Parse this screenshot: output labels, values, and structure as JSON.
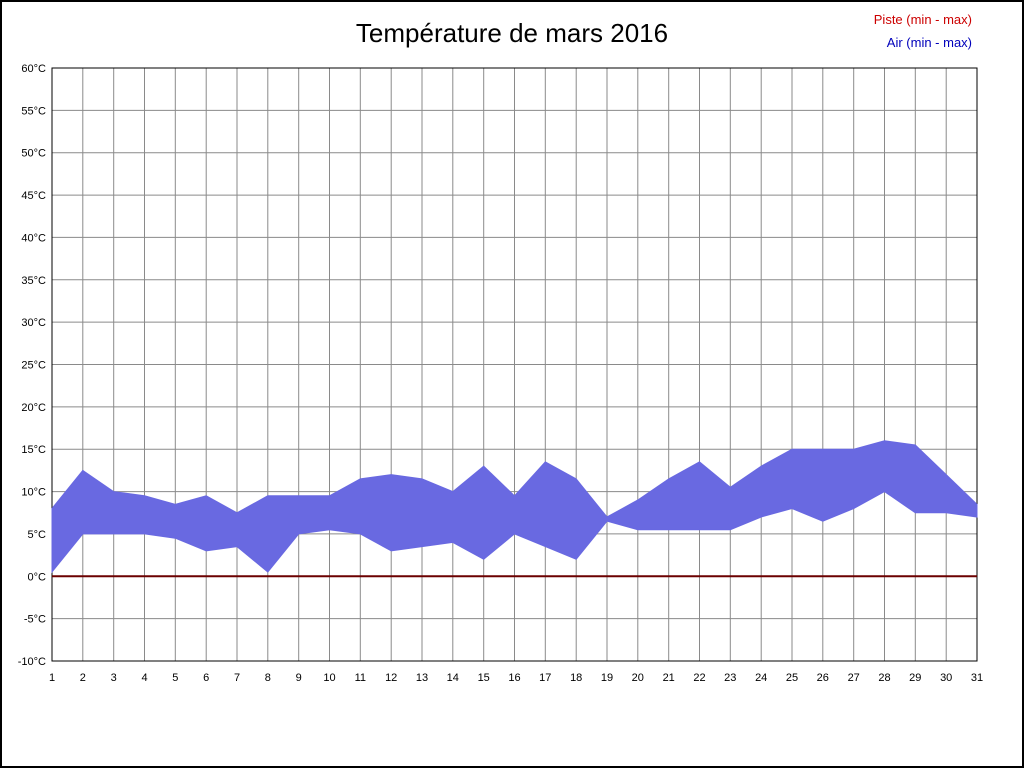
{
  "chart_data": {
    "type": "area",
    "title": "Température de mars 2016",
    "xlabel": "",
    "ylabel": "",
    "grid": true,
    "legend_position": "top-right",
    "background_color": "#ffffff",
    "grid_color": "#8a8a8a",
    "border_color": "#000000",
    "x": [
      1,
      2,
      3,
      4,
      5,
      6,
      7,
      8,
      9,
      10,
      11,
      12,
      13,
      14,
      15,
      16,
      17,
      18,
      19,
      20,
      21,
      22,
      23,
      24,
      25,
      26,
      27,
      28,
      29,
      30,
      31
    ],
    "x_tick_labels": [
      "1",
      "2",
      "3",
      "4",
      "5",
      "6",
      "7",
      "8",
      "9",
      "10",
      "11",
      "12",
      "13",
      "14",
      "15",
      "16",
      "17",
      "18",
      "19",
      "20",
      "21",
      "22",
      "23",
      "24",
      "25",
      "26",
      "27",
      "28",
      "29",
      "30",
      "31"
    ],
    "ylim": [
      -10,
      60
    ],
    "y_ticks": [
      60,
      55,
      50,
      45,
      40,
      35,
      30,
      25,
      20,
      15,
      10,
      5,
      0,
      -5,
      -10
    ],
    "y_tick_labels": [
      "60°C",
      "55°C",
      "50°C",
      "45°C",
      "40°C",
      "35°C",
      "30°C",
      "25°C",
      "20°C",
      "15°C",
      "10°C",
      "5°C",
      "0°C",
      "-5°C",
      "-10°C"
    ],
    "series": [
      {
        "name": "Piste (min - max)",
        "type": "line",
        "color": "#6b0000",
        "legend_color": "#cc0000",
        "values": [
          0,
          0,
          0,
          0,
          0,
          0,
          0,
          0,
          0,
          0,
          0,
          0,
          0,
          0,
          0,
          0,
          0,
          0,
          0,
          0,
          0,
          0,
          0,
          0,
          0,
          0,
          0,
          0,
          0,
          0,
          0
        ]
      },
      {
        "name": "Air (min - max)",
        "type": "band",
        "color": "#6969e1",
        "legend_color": "#0000bb",
        "min": [
          0.5,
          5,
          5,
          5,
          4.5,
          3,
          3.5,
          0.5,
          5,
          5.5,
          5,
          3,
          3.5,
          4,
          2,
          5,
          3.5,
          2,
          6.5,
          5.5,
          5.5,
          5.5,
          5.5,
          7,
          8,
          6.5,
          8,
          10,
          7.5,
          7.5,
          7
        ],
        "max": [
          8,
          12.5,
          10,
          9.5,
          8.5,
          9.5,
          7.5,
          9.5,
          9.5,
          9.5,
          11.5,
          12,
          11.5,
          10,
          13,
          9.5,
          13.5,
          11.5,
          7,
          9,
          11.5,
          13.5,
          10.5,
          13,
          15,
          15,
          15,
          16,
          15.5,
          12,
          8.5
        ]
      }
    ]
  }
}
